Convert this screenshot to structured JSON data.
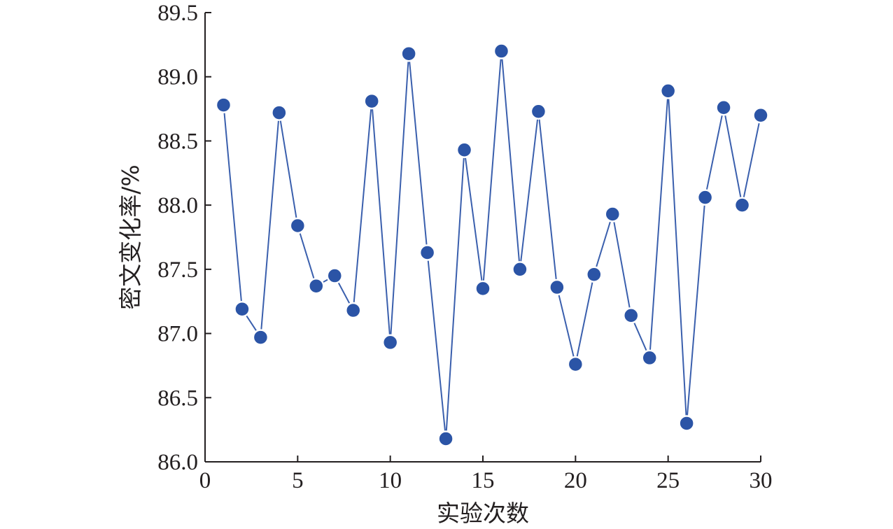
{
  "chart_data": {
    "type": "line",
    "xlabel": "实验次数",
    "ylabel": "密文变化率/%",
    "xlim": [
      0,
      30
    ],
    "ylim": [
      86.0,
      89.5
    ],
    "xticks": [
      0,
      5,
      10,
      15,
      20,
      25,
      30
    ],
    "yticks": [
      "86.0",
      "86.5",
      "87.0",
      "87.5",
      "88.0",
      "88.5",
      "89.0",
      "89.5"
    ],
    "grid": false,
    "markers": "filled-circle",
    "series": [
      {
        "x": [
          1,
          2,
          3,
          4,
          5,
          6,
          7,
          8,
          9,
          10,
          11,
          12,
          13,
          14,
          15,
          16,
          17,
          18,
          19,
          20,
          21,
          22,
          23,
          24,
          25,
          26,
          27,
          28,
          29,
          30
        ],
        "y": [
          88.78,
          87.19,
          86.97,
          88.72,
          87.84,
          87.37,
          87.45,
          87.18,
          88.81,
          86.93,
          89.18,
          87.63,
          86.18,
          88.43,
          87.35,
          89.2,
          87.5,
          88.73,
          87.36,
          86.76,
          87.46,
          87.93,
          87.14,
          86.81,
          88.89,
          86.3,
          88.06,
          88.76,
          88.0,
          88.7
        ]
      }
    ],
    "colors": {
      "line": "#3a5fad",
      "marker": "#2b54a6",
      "axis": "#231f20"
    }
  }
}
